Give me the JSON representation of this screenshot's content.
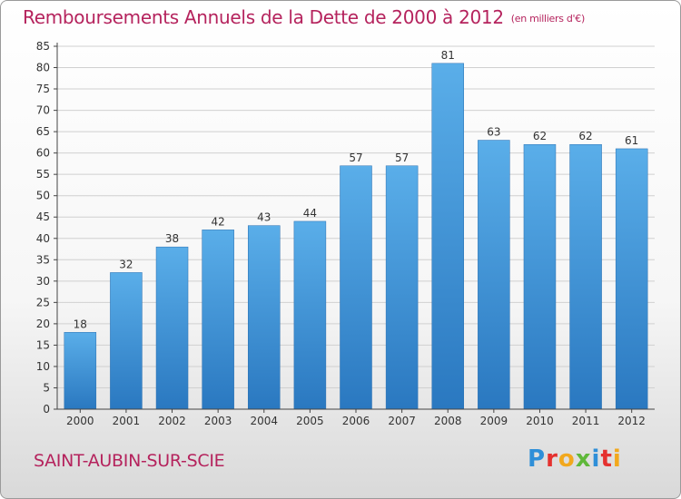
{
  "header": {
    "title": "Remboursements Annuels de la Dette de 2000 à 2012",
    "unit": "(en milliers d'€)"
  },
  "footer": {
    "city": "SAINT-AUBIN-SUR-SCIE",
    "logo_letters": [
      "P",
      "r",
      "o",
      "x",
      "i",
      "t",
      "i"
    ],
    "logo_colors": [
      "#2f8fd8",
      "#e5312f",
      "#f2a81d",
      "#5fb83a",
      "#2f8fd8",
      "#e5312f",
      "#f2a81d"
    ]
  },
  "colors": {
    "bar": "#3d97de",
    "accent": "#b5235d"
  },
  "chart_data": {
    "type": "bar",
    "categories": [
      "2000",
      "2001",
      "2002",
      "2003",
      "2004",
      "2005",
      "2006",
      "2007",
      "2008",
      "2009",
      "2010",
      "2011",
      "2012"
    ],
    "values": [
      18,
      32,
      38,
      42,
      43,
      44,
      57,
      57,
      81,
      63,
      62,
      62,
      61
    ],
    "ylim": [
      0,
      85
    ],
    "yticks": [
      0,
      5,
      10,
      15,
      20,
      25,
      30,
      35,
      40,
      45,
      50,
      55,
      60,
      65,
      70,
      75,
      80,
      85
    ],
    "grid": true
  }
}
